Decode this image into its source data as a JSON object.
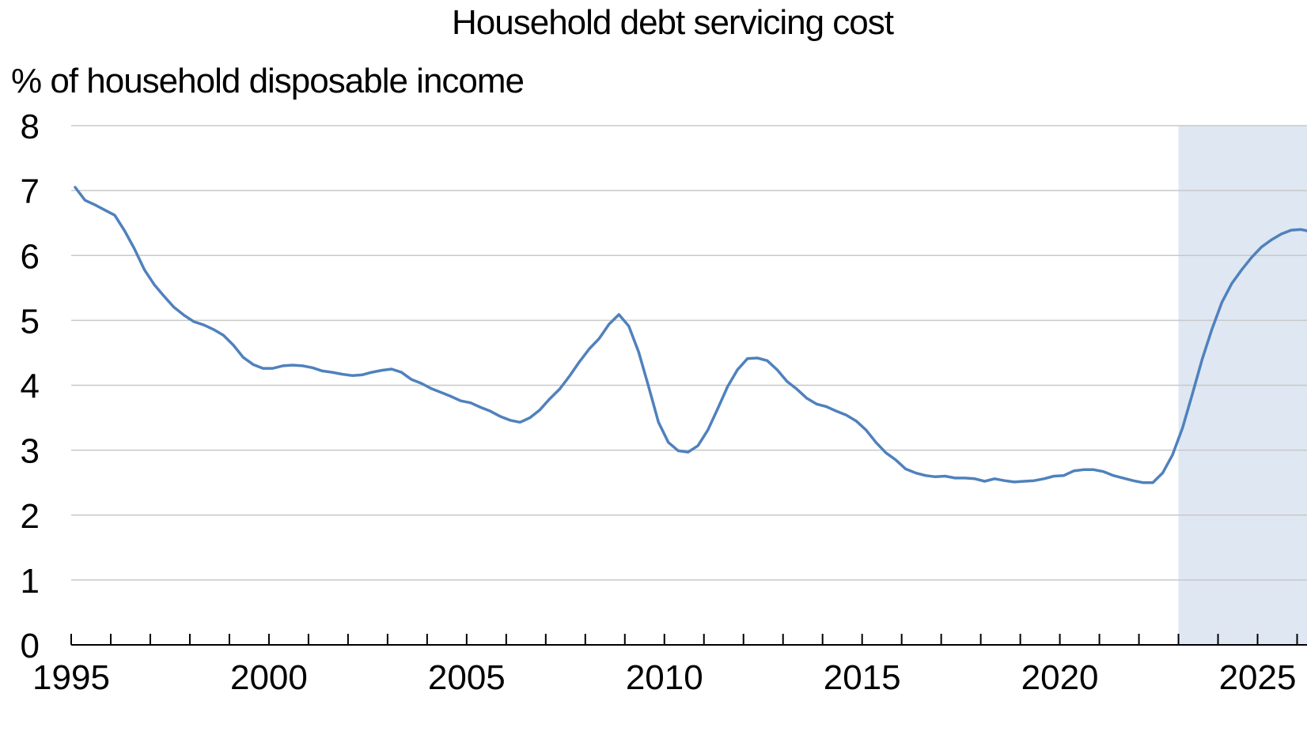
{
  "chart_data": {
    "type": "line",
    "title": "Household debt servicing cost",
    "ylabel": "% of household disposable income",
    "xlabel": "",
    "ylim": [
      0,
      8
    ],
    "xlim": [
      1995,
      2026.25
    ],
    "y_ticks": [
      0,
      1,
      2,
      3,
      4,
      5,
      6,
      7,
      8
    ],
    "x_ticks": [
      1995,
      2000,
      2005,
      2010,
      2015,
      2020,
      2025
    ],
    "grid": "horizontal",
    "projection_shaded_from": 2023,
    "line_color": "#4f81bd",
    "shade_color": "#dfe7f2",
    "series": [
      {
        "x": [
          1995.1,
          1995.35,
          1995.6,
          1995.85,
          1996.1,
          1996.35,
          1996.6,
          1996.85,
          1997.1,
          1997.35,
          1997.6,
          1997.85,
          1998.1,
          1998.35,
          1998.6,
          1998.85,
          1999.1,
          1999.35,
          1999.6,
          1999.85,
          2000.1,
          2000.35,
          2000.6,
          2000.85,
          2001.1,
          2001.35,
          2001.6,
          2001.85,
          2002.1,
          2002.35,
          2002.6,
          2002.85,
          2003.1,
          2003.35,
          2003.6,
          2003.85,
          2004.1,
          2004.35,
          2004.6,
          2004.85,
          2005.1,
          2005.35,
          2005.6,
          2005.85,
          2006.1,
          2006.35,
          2006.6,
          2006.85,
          2007.1,
          2007.35,
          2007.6,
          2007.85,
          2008.1,
          2008.35,
          2008.6,
          2008.85,
          2009.1,
          2009.35,
          2009.6,
          2009.85,
          2010.1,
          2010.35,
          2010.6,
          2010.85,
          2011.1,
          2011.35,
          2011.6,
          2011.85,
          2012.1,
          2012.35,
          2012.6,
          2012.85,
          2013.1,
          2013.35,
          2013.6,
          2013.85,
          2014.1,
          2014.35,
          2014.6,
          2014.85,
          2015.1,
          2015.35,
          2015.6,
          2015.85,
          2016.1,
          2016.35,
          2016.6,
          2016.85,
          2017.1,
          2017.35,
          2017.6,
          2017.85,
          2018.1,
          2018.35,
          2018.6,
          2018.85,
          2019.1,
          2019.35,
          2019.6,
          2019.85,
          2020.1,
          2020.35,
          2020.6,
          2020.85,
          2021.1,
          2021.35,
          2021.6,
          2021.85,
          2022.1,
          2022.35,
          2022.6,
          2022.85,
          2023.1,
          2023.35,
          2023.6,
          2023.85,
          2024.1,
          2024.35,
          2024.6,
          2024.85,
          2025.1,
          2025.35,
          2025.6,
          2025.85,
          2026.1,
          2026.25
        ],
        "y": [
          7.05,
          6.85,
          6.78,
          6.7,
          6.62,
          6.38,
          6.1,
          5.78,
          5.55,
          5.37,
          5.2,
          5.08,
          4.98,
          4.93,
          4.86,
          4.77,
          4.62,
          4.43,
          4.32,
          4.26,
          4.26,
          4.3,
          4.31,
          4.3,
          4.27,
          4.22,
          4.2,
          4.17,
          4.15,
          4.16,
          4.2,
          4.23,
          4.25,
          4.2,
          4.09,
          4.03,
          3.95,
          3.89,
          3.83,
          3.76,
          3.73,
          3.66,
          3.6,
          3.52,
          3.46,
          3.43,
          3.5,
          3.62,
          3.79,
          3.94,
          4.14,
          4.36,
          4.56,
          4.72,
          4.94,
          5.09,
          4.91,
          4.51,
          3.98,
          3.43,
          3.12,
          2.99,
          2.97,
          3.07,
          3.31,
          3.64,
          3.98,
          4.24,
          4.41,
          4.42,
          4.38,
          4.24,
          4.06,
          3.94,
          3.8,
          3.71,
          3.67,
          3.6,
          3.54,
          3.45,
          3.31,
          3.12,
          2.96,
          2.85,
          2.71,
          2.65,
          2.61,
          2.59,
          2.6,
          2.57,
          2.57,
          2.56,
          2.52,
          2.56,
          2.53,
          2.51,
          2.52,
          2.53,
          2.56,
          2.6,
          2.61,
          2.68,
          2.7,
          2.7,
          2.67,
          2.61,
          2.57,
          2.53,
          2.5,
          2.5,
          2.65,
          2.93,
          3.34,
          3.86,
          4.4,
          4.87,
          5.28,
          5.57,
          5.78,
          5.97,
          6.13,
          6.24,
          6.33,
          6.39,
          6.4,
          6.38
        ]
      }
    ]
  }
}
